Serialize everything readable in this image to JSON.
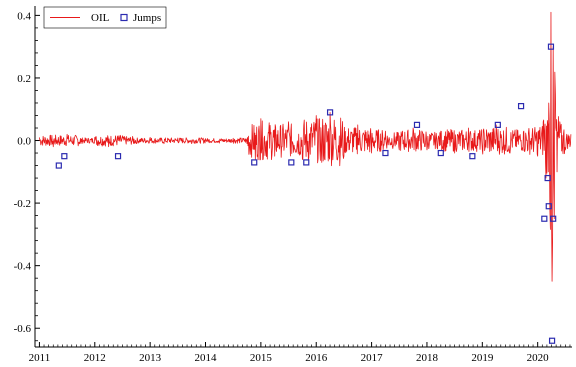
{
  "chart_data": {
    "type": "line",
    "title": "",
    "xlabel": "",
    "ylabel": "",
    "xlim": [
      2010.92,
      2020.62
    ],
    "ylim": [
      -0.66,
      0.43
    ],
    "x_ticks": [
      {
        "value": 2011,
        "label": "2011"
      },
      {
        "value": 2012,
        "label": "2012"
      },
      {
        "value": 2013,
        "label": "2013"
      },
      {
        "value": 2014,
        "label": "2014"
      },
      {
        "value": 2015,
        "label": "2015"
      },
      {
        "value": 2016,
        "label": "2016"
      },
      {
        "value": 2017,
        "label": "2017"
      },
      {
        "value": 2018,
        "label": "2018"
      },
      {
        "value": 2019,
        "label": "2019"
      },
      {
        "value": 2020,
        "label": "2020"
      }
    ],
    "y_ticks": [
      {
        "value": 0.4,
        "label": "0.4"
      },
      {
        "value": 0.2,
        "label": "0.2"
      },
      {
        "value": 0.0,
        "label": "0.0"
      },
      {
        "value": -0.2,
        "label": "-0.2"
      },
      {
        "value": -0.4,
        "label": "-0.4"
      },
      {
        "value": -0.6,
        "label": "-0.6"
      }
    ],
    "grid": false,
    "legend": {
      "position": "top-left",
      "entries": [
        {
          "name": "OIL",
          "marker": "line",
          "color": "#e8191a"
        },
        {
          "name": "Jumps",
          "marker": "square",
          "color": "#2b2bb0"
        }
      ]
    },
    "series": [
      {
        "name": "OIL",
        "type": "line",
        "color": "#e8191a",
        "x": [
          2011.0,
          2011.25,
          2011.5,
          2011.75,
          2012.0,
          2012.25,
          2012.5,
          2012.75,
          2013.0,
          2013.25,
          2013.5,
          2013.75,
          2014.0,
          2014.25,
          2014.5,
          2014.75,
          2014.9,
          2015.0,
          2015.25,
          2015.5,
          2015.75,
          2016.0,
          2016.1,
          2016.25,
          2016.5,
          2016.75,
          2017.0,
          2017.25,
          2017.5,
          2017.75,
          2018.0,
          2018.25,
          2018.5,
          2018.75,
          2019.0,
          2019.25,
          2019.5,
          2019.75,
          2020.0,
          2020.1,
          2020.15,
          2020.2,
          2020.22,
          2020.24,
          2020.26,
          2020.28,
          2020.3,
          2020.32,
          2020.35,
          2020.4,
          2020.5,
          2020.6
        ],
        "y": [
          0.01,
          -0.02,
          0.02,
          -0.01,
          0.01,
          -0.02,
          0.015,
          -0.01,
          0.01,
          -0.01,
          0.008,
          -0.01,
          0.006,
          -0.008,
          0.007,
          -0.01,
          -0.06,
          0.07,
          -0.05,
          0.06,
          -0.06,
          0.08,
          -0.07,
          0.09,
          -0.05,
          0.05,
          -0.04,
          0.03,
          -0.03,
          0.04,
          -0.03,
          0.03,
          -0.04,
          0.04,
          -0.03,
          0.05,
          -0.04,
          0.03,
          -0.05,
          0.06,
          -0.12,
          0.12,
          -0.22,
          0.41,
          -0.45,
          0.3,
          -0.25,
          0.15,
          -0.1,
          0.06,
          -0.03,
          0.02
        ]
      },
      {
        "name": "Jumps",
        "type": "scatter",
        "color": "#2b2bb0",
        "x": [
          2011.35,
          2011.45,
          2012.42,
          2014.88,
          2015.55,
          2015.82,
          2016.25,
          2017.25,
          2017.82,
          2018.25,
          2018.82,
          2019.28,
          2019.7,
          2020.12,
          2020.18,
          2020.2,
          2020.24,
          2020.26,
          2020.28
        ],
        "y": [
          -0.08,
          -0.05,
          -0.05,
          -0.07,
          -0.07,
          -0.07,
          0.09,
          -0.04,
          0.05,
          -0.04,
          -0.05,
          0.05,
          0.11,
          -0.25,
          -0.12,
          -0.21,
          0.3,
          -0.64,
          -0.25
        ]
      }
    ]
  }
}
